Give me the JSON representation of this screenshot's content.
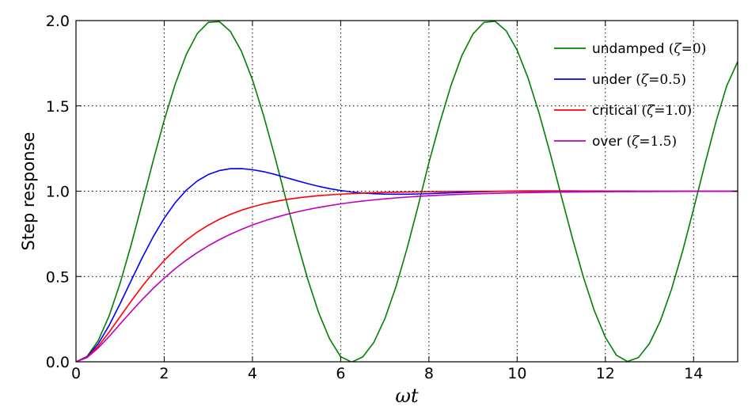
{
  "chart_data": {
    "type": "line",
    "title": "",
    "xlabel": "ωt",
    "ylabel": "Step response",
    "xlim": [
      0,
      15
    ],
    "ylim": [
      0,
      2
    ],
    "x_ticks": [
      0,
      2,
      4,
      6,
      8,
      10,
      12,
      14
    ],
    "x_tick_labels": [
      "0",
      "2",
      "4",
      "6",
      "8",
      "10",
      "12",
      "14"
    ],
    "y_ticks": [
      0,
      0.5,
      1,
      1.5,
      2
    ],
    "y_tick_labels": [
      "0.0",
      "0.5",
      "1.0",
      "1.5",
      "2.0"
    ],
    "grid": true,
    "grid_style": "dotted",
    "legend_position": "top-right",
    "x_sample_step": 0.25,
    "series": [
      {
        "name": "undamped",
        "zeta_text": "ζ",
        "equals_text": "=",
        "value_text": "0",
        "color": "#008000",
        "values": [
          0,
          0.0311,
          0.1224,
          0.2683,
          0.4597,
          0.685,
          0.9293,
          1.1782,
          1.4161,
          1.6282,
          1.8011,
          1.9243,
          1.99,
          1.9941,
          1.9365,
          1.8206,
          1.6536,
          1.4457,
          1.2102,
          0.9614,
          0.7163,
          0.4866,
          0.2887,
          0.1335,
          0.0298,
          -0.0015,
          0.0285,
          0.1128,
          0.2513,
          0.4372,
          0.6604,
          0.9076,
          1.1673,
          1.4037,
          1.6192,
          1.7966,
          1.9218,
          1.9896,
          1.996,
          1.9405,
          1.8266,
          1.6614,
          1.455,
          1.2204,
          0.9725,
          0.7274,
          0.4977,
          0.2993,
          0.1433,
          0.0385,
          0.0018,
          0.0251,
          0.1067,
          0.2418,
          0.4251,
          0.6478,
          0.8954,
          1.1525,
          1.3999,
          1.6168,
          1.7597
        ]
      },
      {
        "name": "under",
        "zeta_text": "ζ",
        "equals_text": "=",
        "value_text": "0.5",
        "color": "#0000ff",
        "values": [
          0,
          0.0288,
          0.1044,
          0.2125,
          0.3403,
          0.4756,
          0.609,
          0.7328,
          0.8417,
          0.933,
          1.0055,
          1.06,
          1.0979,
          1.1208,
          1.1318,
          1.1324,
          1.1258,
          1.1147,
          1.0989,
          1.0808,
          1.0623,
          1.0445,
          1.0286,
          1.0149,
          1.004,
          0.9954,
          0.9892,
          0.9851,
          0.9828,
          0.9821,
          0.9825,
          0.9837,
          0.9855,
          0.9879,
          0.9904,
          0.9929,
          0.9951,
          0.997,
          0.9986,
          0.9999,
          1.0008,
          1.0013,
          1.0016,
          1.0017,
          1.0016,
          1.0015,
          1.0012,
          1.0009,
          1.0006,
          1.0003,
          1.0001,
          0.9999,
          0.9998,
          0.9997,
          0.9997,
          0.9997,
          0.9998,
          0.9998,
          0.9999,
          0.9999,
          1.0
        ]
      },
      {
        "name": "critical",
        "zeta_text": "ζ",
        "equals_text": "=",
        "value_text": "1.0",
        "color": "#ff0000",
        "values": [
          0,
          0.0265,
          0.0902,
          0.1734,
          0.2642,
          0.3554,
          0.4422,
          0.5221,
          0.594,
          0.6575,
          0.7127,
          0.7603,
          0.8009,
          0.8352,
          0.8641,
          0.8883,
          0.9084,
          0.9251,
          0.9389,
          0.9503,
          0.9596,
          0.9672,
          0.9734,
          0.9785,
          0.9826,
          0.986,
          0.9887,
          0.9909,
          0.9927,
          0.9941,
          0.9953,
          0.9962,
          0.997,
          0.9976,
          0.9981,
          0.9985,
          0.9988,
          0.999,
          0.9992,
          0.9994,
          0.9995,
          0.9996,
          0.9997,
          0.9998,
          0.9998,
          0.9999,
          0.9999,
          0.9999,
          0.9999,
          0.9999,
          1.0,
          1.0,
          1.0,
          1.0,
          1.0,
          1.0,
          1.0,
          1.0,
          1.0,
          1.0,
          1.0
        ]
      },
      {
        "name": "over",
        "zeta_text": "ζ",
        "equals_text": "=",
        "value_text": "1.5",
        "color": "#bf00bf",
        "values": [
          0,
          0.0245,
          0.08,
          0.148,
          0.2212,
          0.2941,
          0.3646,
          0.4303,
          0.4906,
          0.5458,
          0.5955,
          0.6401,
          0.6801,
          0.7158,
          0.7477,
          0.7762,
          0.8016,
          0.8242,
          0.8443,
          0.8622,
          0.8781,
          0.8922,
          0.9047,
          0.9158,
          0.9257,
          0.9344,
          0.9422,
          0.949,
          0.9551,
          0.9605,
          0.9652,
          0.9694,
          0.9731,
          0.9764,
          0.9793,
          0.9818,
          0.984,
          0.986,
          0.9877,
          0.9892,
          0.9906,
          0.9918,
          0.9928,
          0.9937,
          0.9945,
          0.9952,
          0.9958,
          0.9963,
          0.9968,
          0.9972,
          0.9976,
          0.9979,
          0.9982,
          0.9984,
          0.9986,
          0.9988,
          0.999,
          0.9991,
          0.9992,
          0.9993,
          0.9994
        ]
      }
    ]
  }
}
